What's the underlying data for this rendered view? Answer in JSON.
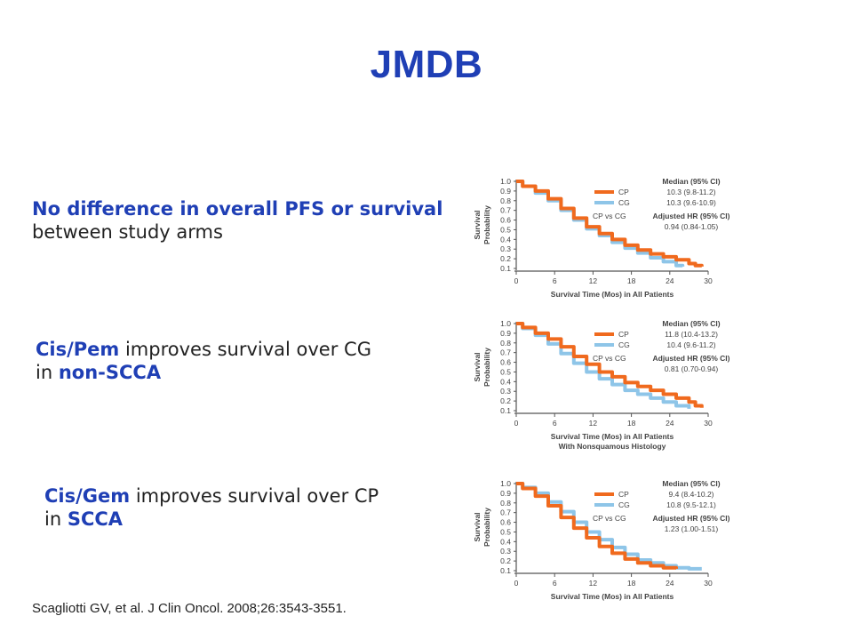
{
  "title": "JMDB",
  "notes": [
    {
      "hl": "No difference in overall PFS or survival",
      "rest": "",
      "line2": "between study arms",
      "line2_hl": ""
    },
    {
      "hl": "Cis/Pem",
      "rest": " improves survival over CG",
      "line2": "in ",
      "line2_hl": "non-SCCA"
    },
    {
      "hl": "Cis/Gem",
      "rest": " improves survival over CP",
      "line2": "in ",
      "line2_hl": "SCCA"
    }
  ],
  "citation": "Scagliotti GV, et al. J Clin Oncol. 2008;26:3543-3551.",
  "colors": {
    "CP": "#f06a1e",
    "CG": "#8ec5e8",
    "title": "#1f3fb5"
  },
  "chart_data": [
    {
      "type": "line",
      "xlabel": "Survival Time (Mos) in All Patients",
      "xlabel2": "",
      "ylabel": [
        "Survival",
        "Probability"
      ],
      "xlim": [
        0,
        30
      ],
      "ylim": [
        0.1,
        1.0
      ],
      "xticks": [
        0,
        6,
        12,
        18,
        24,
        30
      ],
      "yticks": [
        "1.0",
        "0.9",
        "0.8",
        "0.7",
        "0.6",
        "0.5",
        "0.4",
        "0.3",
        "0.2",
        "0.1"
      ],
      "series": [
        {
          "name": "CP",
          "x": [
            0,
            1,
            3,
            5,
            7,
            9,
            11,
            13,
            15,
            17,
            19,
            21,
            23,
            25,
            27,
            28,
            29
          ],
          "y": [
            1.0,
            0.95,
            0.9,
            0.82,
            0.72,
            0.62,
            0.53,
            0.46,
            0.4,
            0.34,
            0.29,
            0.25,
            0.22,
            0.19,
            0.15,
            0.13,
            0.12
          ]
        },
        {
          "name": "CG",
          "x": [
            0,
            1,
            3,
            5,
            7,
            9,
            11,
            13,
            15,
            17,
            19,
            21,
            23,
            25,
            26
          ],
          "y": [
            1.0,
            0.95,
            0.88,
            0.8,
            0.7,
            0.6,
            0.51,
            0.44,
            0.37,
            0.31,
            0.26,
            0.21,
            0.17,
            0.13,
            0.12
          ]
        }
      ],
      "legend": {
        "cp": "CP",
        "cg": "CG",
        "compare": "CP vs CG"
      },
      "stats": {
        "median_hdr": "Median (95% CI)",
        "cp_median": "10.3 (9.8-11.2)",
        "cg_median": "10.3 (9.6-10.9)",
        "hr_hdr": "Adjusted HR (95% CI)",
        "hr": "0.94 (0.84-1.05)"
      }
    },
    {
      "type": "line",
      "xlabel": "Survival Time (Mos) in All Patients",
      "xlabel2": "With Nonsquamous Histology",
      "ylabel": [
        "Survival",
        "Probability"
      ],
      "xlim": [
        0,
        30
      ],
      "ylim": [
        0.1,
        1.0
      ],
      "xticks": [
        0,
        6,
        12,
        18,
        24,
        30
      ],
      "yticks": [
        "1.0",
        "0.9",
        "0.8",
        "0.7",
        "0.6",
        "0.5",
        "0.4",
        "0.3",
        "0.2",
        "0.1"
      ],
      "series": [
        {
          "name": "CP",
          "x": [
            0,
            1,
            3,
            5,
            7,
            9,
            11,
            13,
            15,
            17,
            19,
            21,
            23,
            25,
            27,
            28,
            29
          ],
          "y": [
            1.0,
            0.96,
            0.9,
            0.84,
            0.76,
            0.66,
            0.58,
            0.5,
            0.45,
            0.39,
            0.35,
            0.31,
            0.27,
            0.23,
            0.19,
            0.15,
            0.13
          ]
        },
        {
          "name": "CG",
          "x": [
            0,
            1,
            3,
            5,
            7,
            9,
            11,
            13,
            15,
            17,
            19,
            21,
            23,
            25,
            27
          ],
          "y": [
            1.0,
            0.95,
            0.88,
            0.79,
            0.69,
            0.59,
            0.5,
            0.43,
            0.37,
            0.31,
            0.27,
            0.23,
            0.19,
            0.15,
            0.12
          ]
        }
      ],
      "legend": {
        "cp": "CP",
        "cg": "CG",
        "compare": "CP vs CG"
      },
      "stats": {
        "median_hdr": "Median (95% CI)",
        "cp_median": "11.8 (10.4-13.2)",
        "cg_median": "10.4 (9.6-11.2)",
        "hr_hdr": "Adjusted HR (95% CI)",
        "hr": "0.81 (0.70-0.94)"
      }
    },
    {
      "type": "line",
      "xlabel": "Survival Time (Mos) in All Patients",
      "xlabel2": "",
      "ylabel": [
        "Survival",
        "Probability"
      ],
      "xlim": [
        0,
        30
      ],
      "ylim": [
        0.1,
        1.0
      ],
      "xticks": [
        0,
        6,
        12,
        18,
        24,
        30
      ],
      "yticks": [
        "1.0",
        "0.9",
        "0.8",
        "0.7",
        "0.6",
        "0.5",
        "0.4",
        "0.3",
        "0.2",
        "0.1"
      ],
      "series": [
        {
          "name": "CP",
          "x": [
            0,
            1,
            3,
            5,
            7,
            9,
            11,
            13,
            15,
            17,
            19,
            21,
            23,
            25
          ],
          "y": [
            1.0,
            0.95,
            0.87,
            0.77,
            0.65,
            0.54,
            0.44,
            0.35,
            0.28,
            0.22,
            0.18,
            0.15,
            0.13,
            0.12
          ]
        },
        {
          "name": "CG",
          "x": [
            0,
            1,
            3,
            5,
            7,
            9,
            11,
            13,
            15,
            17,
            19,
            21,
            23,
            25,
            27,
            29
          ],
          "y": [
            1.0,
            0.96,
            0.9,
            0.81,
            0.71,
            0.6,
            0.5,
            0.42,
            0.34,
            0.27,
            0.21,
            0.18,
            0.15,
            0.13,
            0.12,
            0.12
          ]
        }
      ],
      "legend": {
        "cp": "CP",
        "cg": "CG",
        "compare": "CP vs CG"
      },
      "stats": {
        "median_hdr": "Median (95% CI)",
        "cp_median": "9.4 (8.4-10.2)",
        "cg_median": "10.8 (9.5-12.1)",
        "hr_hdr": "Adjusted HR (95% CI)",
        "hr": "1.23 (1.00-1.51)"
      }
    }
  ]
}
